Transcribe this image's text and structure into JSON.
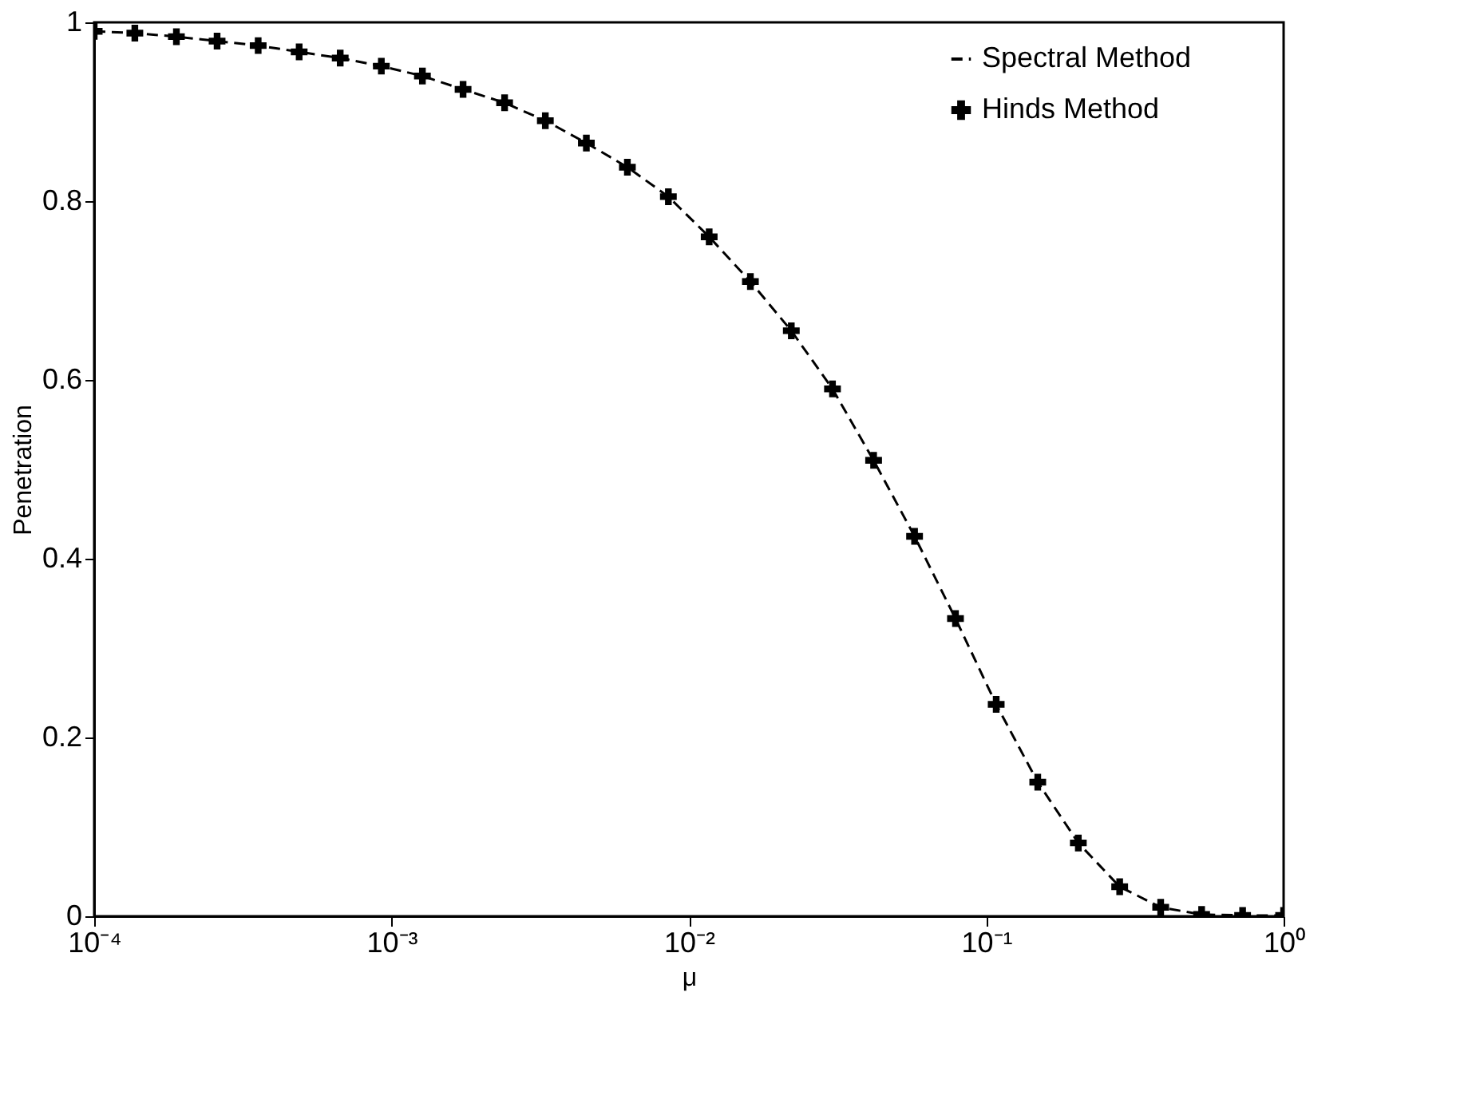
{
  "chart_data": {
    "type": "line",
    "xlabel": "μ",
    "ylabel": "Penetration",
    "log": "x",
    "x": [
      0.0001,
      0.000137,
      0.000189,
      0.000259,
      0.000356,
      0.000489,
      0.000672,
      0.000924,
      0.00127,
      0.00174,
      0.0024,
      0.00329,
      0.00452,
      0.00621,
      0.00853,
      0.0117,
      0.0161,
      0.0221,
      0.0304,
      0.0418,
      0.0574,
      0.0788,
      0.108,
      0.149,
      0.204,
      0.281,
      0.386,
      0.53,
      0.728,
      1
    ],
    "series": [
      {
        "name": "Spectral Method",
        "color": "#000000",
        "line_style": "dashed",
        "marker": "none",
        "values": [
          0.99,
          0.988,
          0.984,
          0.979,
          0.974,
          0.967,
          0.96,
          0.951,
          0.94,
          0.925,
          0.91,
          0.89,
          0.865,
          0.838,
          0.805,
          0.76,
          0.71,
          0.655,
          0.59,
          0.51,
          0.425,
          0.333,
          0.237,
          0.15,
          0.082,
          0.033,
          0.01,
          0.002,
          0.001,
          0.001
        ]
      },
      {
        "name": "Hinds Method",
        "type": "scatter",
        "color": "#000000",
        "marker": "cross",
        "values": [
          0.99,
          0.988,
          0.984,
          0.979,
          0.974,
          0.967,
          0.96,
          0.951,
          0.94,
          0.925,
          0.91,
          0.89,
          0.865,
          0.838,
          0.805,
          0.76,
          0.71,
          0.655,
          0.59,
          0.51,
          0.425,
          0.333,
          0.237,
          0.15,
          0.082,
          0.033,
          0.01,
          0.002,
          0.001,
          0.001
        ]
      }
    ],
    "xlim": [
      0.0001,
      1
    ],
    "xticks": [
      {
        "value": 0.0001,
        "label": "10⁻⁴"
      },
      {
        "value": 0.001,
        "label": "10⁻³"
      },
      {
        "value": 0.01,
        "label": "10⁻²"
      },
      {
        "value": 0.1,
        "label": "10⁻¹"
      },
      {
        "value": 1,
        "label": "10⁰"
      }
    ],
    "ylim": [
      0,
      1
    ],
    "yticks": [
      0,
      0.2,
      0.4,
      0.6,
      0.8,
      1
    ],
    "grid": false,
    "legend": "top right"
  }
}
